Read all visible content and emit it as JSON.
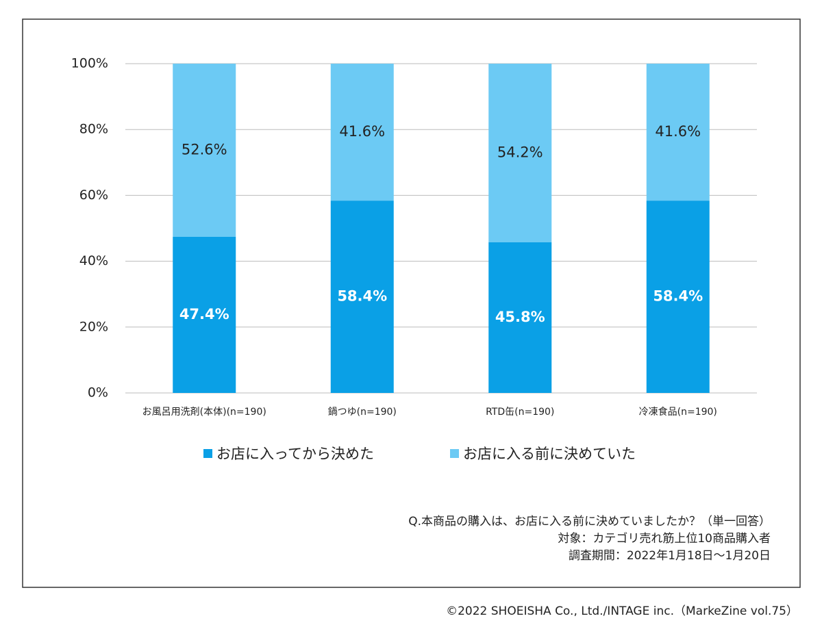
{
  "chart_data": {
    "type": "stacked-bar",
    "categories": [
      "お風呂用洗剤(本体)(n=190)",
      "鍋つゆ(n=190)",
      "RTD缶(n=190)",
      "冷凍食品(n=190)"
    ],
    "series": [
      {
        "name": "お店に入ってから決めた",
        "color": "#0aa0e6",
        "values": [
          47.4,
          58.4,
          45.8,
          58.4
        ],
        "value_labels": [
          "47.4%",
          "58.4%",
          "45.8%",
          "58.4%"
        ]
      },
      {
        "name": "お店に入る前に決めていた",
        "color": "#6ccaf4",
        "values": [
          52.6,
          41.6,
          54.2,
          41.6
        ],
        "value_labels": [
          "52.6%",
          "41.6%",
          "54.2%",
          "41.6%"
        ]
      }
    ],
    "ylim": [
      0,
      100
    ],
    "yticks": [
      {
        "value": 0,
        "label": "0%"
      },
      {
        "value": 20,
        "label": "20%"
      },
      {
        "value": 40,
        "label": "40%"
      },
      {
        "value": 60,
        "label": "60%"
      },
      {
        "value": 80,
        "label": "80%"
      },
      {
        "value": 100,
        "label": "100%"
      }
    ],
    "grid": true,
    "notes": [
      "Q.本商品の購入は、お店に入る前に決めていましたか？（単一回答）",
      "対象：カテゴリ売れ筋上位10商品購入者",
      "調査期間：2022年1月18日～1月20日"
    ],
    "credit": "©2022 SHOEISHA Co., Ltd./INTAGE inc.（MarkeZine vol.75）"
  }
}
